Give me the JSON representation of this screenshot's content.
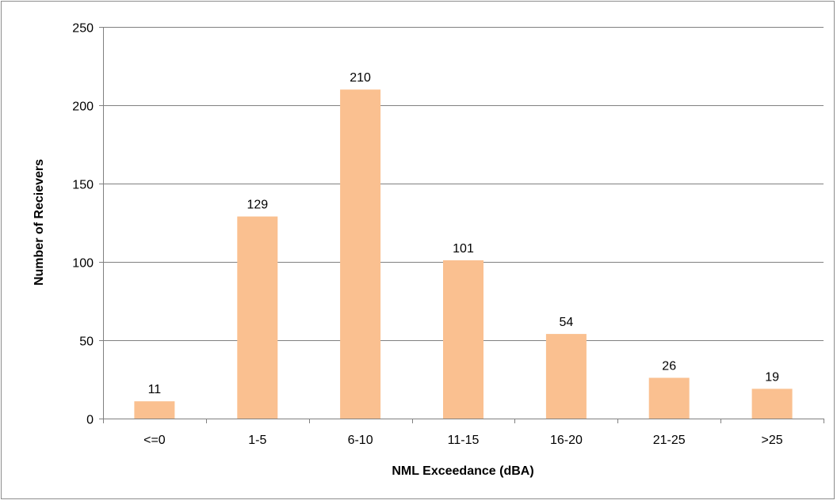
{
  "chart_data": {
    "type": "bar",
    "title": "",
    "xlabel": "NML Exceedance (dBA)",
    "ylabel": "Number of Recievers",
    "categories": [
      "<=0",
      "1-5",
      "6-10",
      "11-15",
      "16-20",
      "21-25",
      ">25"
    ],
    "values": [
      11,
      129,
      210,
      101,
      54,
      26,
      19
    ],
    "data_labels": [
      "11",
      "129",
      "210",
      "101",
      "54",
      "26",
      "19"
    ],
    "ylim": [
      0,
      250
    ],
    "yticks": [
      0,
      50,
      100,
      150,
      200,
      250
    ],
    "grid": true,
    "legend": "none",
    "colors": {
      "bar": "#fac090",
      "grid": "#808080",
      "axis": "#808080",
      "frame": "#8c8c8c"
    }
  }
}
